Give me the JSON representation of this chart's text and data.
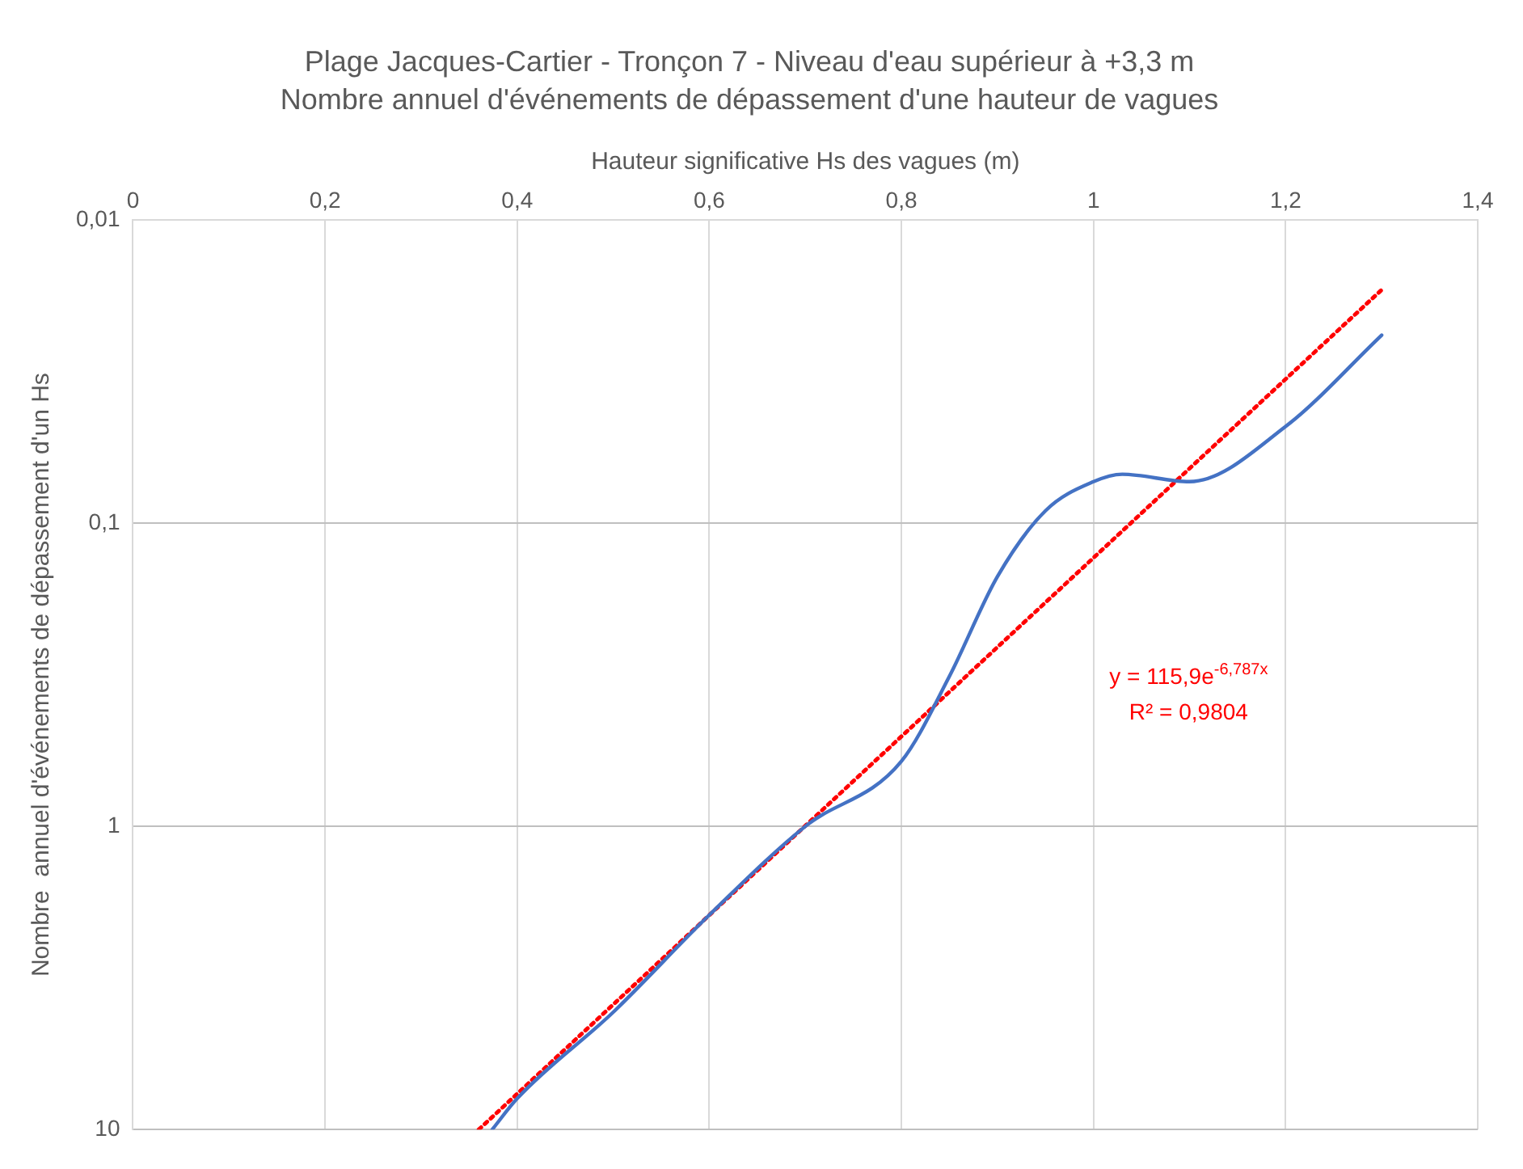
{
  "chart_data": {
    "type": "line",
    "title": "Plage Jacques-Cartier - Tronçon 7 - Niveau d'eau supérieur à +3,3 m",
    "subtitle": "Nombre annuel d'événements de dépassement d'une hauteur de vagues",
    "xlabel": "Hauteur significative Hs des vagues (m)",
    "ylabel": "Nombre  annuel d'événements de dépassement d'un Hs",
    "xlim": [
      0,
      1.4
    ],
    "xticks": [
      {
        "value": 0,
        "label": "0"
      },
      {
        "value": 0.2,
        "label": "0,2"
      },
      {
        "value": 0.4,
        "label": "0,4"
      },
      {
        "value": 0.6,
        "label": "0,6"
      },
      {
        "value": 0.8,
        "label": "0,8"
      },
      {
        "value": 1,
        "label": "1"
      },
      {
        "value": 1.2,
        "label": "1,2"
      },
      {
        "value": 1.4,
        "label": "1,4"
      }
    ],
    "ylim": [
      10,
      0.01
    ],
    "yticks": [
      {
        "value": 0.01,
        "label": "0,01"
      },
      {
        "value": 0.1,
        "label": "0,1"
      },
      {
        "value": 1,
        "label": "1"
      },
      {
        "value": 10,
        "label": "10"
      }
    ],
    "log": "y",
    "grid": true,
    "legend": false,
    "marker": "none",
    "series": [
      {
        "color": "#4472c4",
        "line_style": "solid",
        "x": [
          0.374,
          0.4,
          0.5,
          0.6,
          0.7,
          0.8,
          0.85,
          0.9,
          0.95,
          1.0,
          1.03,
          1.1,
          1.2,
          1.3
        ],
        "values": [
          10,
          7.9,
          4.1,
          1.96,
          1.0,
          0.61,
          0.32,
          0.15,
          0.091,
          0.073,
          0.069,
          0.073,
          0.048,
          0.024
        ]
      },
      {
        "color": "#ff0000",
        "line_style": "dotted",
        "x": [
          0.36,
          1.3
        ],
        "values": [
          10,
          0.017
        ]
      }
    ],
    "annotations": [
      "y = 115,9e$^{-6,787x}$",
      "R² = 0,9804"
    ]
  }
}
